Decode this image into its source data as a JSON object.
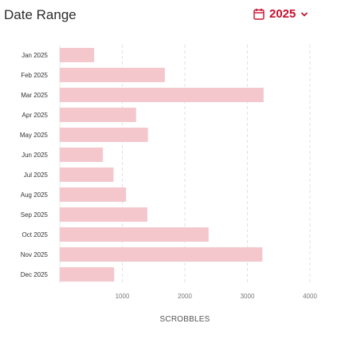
{
  "header": {
    "title": "Date Range",
    "year_label": "2025",
    "calendar_icon": "calendar-icon",
    "chevron_icon": "chevron-down-icon",
    "accent_color": "#c8102e"
  },
  "chart_data": {
    "type": "bar",
    "orientation": "horizontal",
    "categories": [
      "Jan 2025",
      "Feb 2025",
      "Mar 2025",
      "Apr 2025",
      "May 2025",
      "Jun 2025",
      "Jul 2025",
      "Aug 2025",
      "Sep 2025",
      "Oct 2025",
      "Nov 2025",
      "Dec 2025"
    ],
    "values": [
      550,
      1680,
      3260,
      1220,
      1410,
      690,
      860,
      1060,
      1400,
      2380,
      3240,
      870
    ],
    "xlabel": "SCROBBLES",
    "xticks": [
      1000,
      2000,
      3000,
      4000
    ],
    "xlim": [
      0,
      4000
    ],
    "grid": true,
    "bar_color": "#f4c7cc"
  }
}
